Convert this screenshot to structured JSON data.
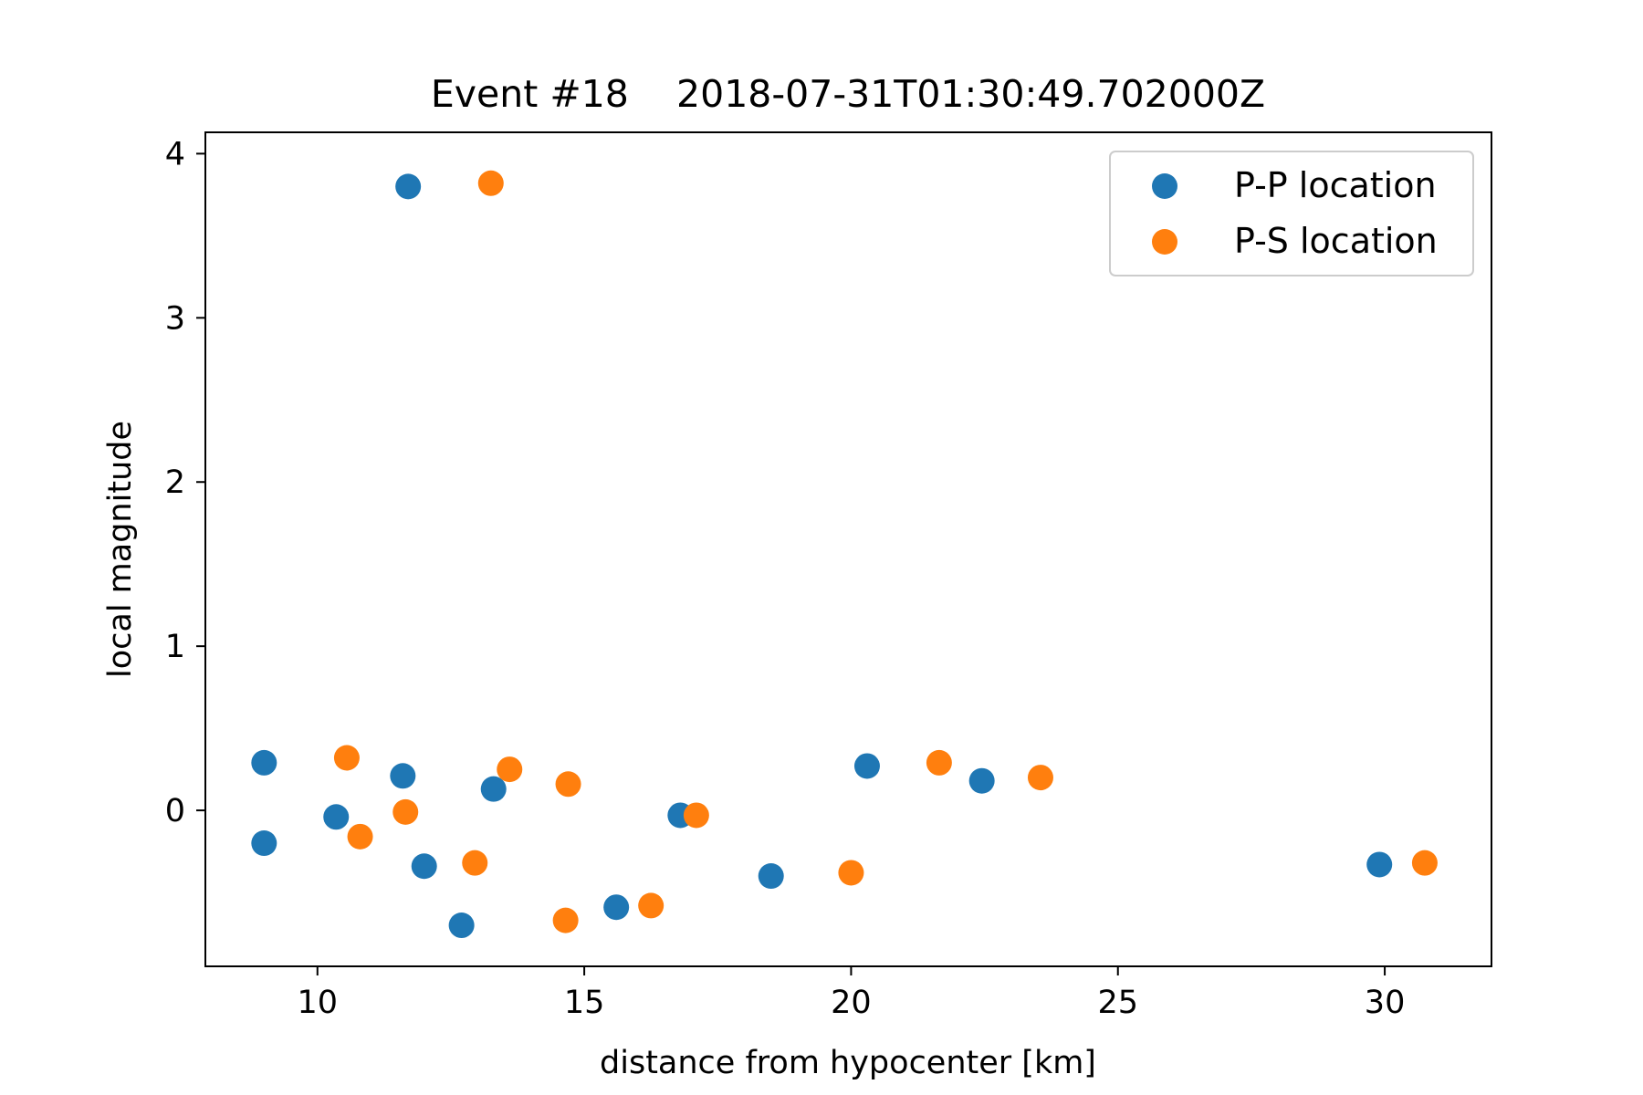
{
  "chart_data": {
    "type": "scatter",
    "title": "Event #18    2018-07-31T01:30:49.702000Z",
    "xlabel": "distance from hypocenter [km]",
    "ylabel": "local magnitude",
    "xlim": [
      7.9,
      32.0
    ],
    "ylim": [
      -0.95,
      4.13
    ],
    "xticks": [
      10,
      15,
      20,
      25,
      30
    ],
    "yticks": [
      0,
      1,
      2,
      3,
      4
    ],
    "grid": false,
    "legend_position": "top-right",
    "series": [
      {
        "name": "P-P location",
        "color": "#1f77b4",
        "points": [
          {
            "x": 11.7,
            "y": 3.8
          },
          {
            "x": 9.0,
            "y": 0.29
          },
          {
            "x": 9.0,
            "y": -0.2
          },
          {
            "x": 10.35,
            "y": -0.04
          },
          {
            "x": 11.6,
            "y": 0.21
          },
          {
            "x": 12.0,
            "y": -0.34
          },
          {
            "x": 12.7,
            "y": -0.7
          },
          {
            "x": 13.3,
            "y": 0.13
          },
          {
            "x": 15.6,
            "y": -0.59
          },
          {
            "x": 16.8,
            "y": -0.03
          },
          {
            "x": 18.5,
            "y": -0.4
          },
          {
            "x": 20.3,
            "y": 0.27
          },
          {
            "x": 22.45,
            "y": 0.18
          },
          {
            "x": 29.9,
            "y": -0.33
          }
        ]
      },
      {
        "name": "P-S location",
        "color": "#ff7f0e",
        "points": [
          {
            "x": 13.25,
            "y": 3.82
          },
          {
            "x": 10.55,
            "y": 0.32
          },
          {
            "x": 10.8,
            "y": -0.16
          },
          {
            "x": 11.65,
            "y": -0.01
          },
          {
            "x": 12.95,
            "y": -0.32
          },
          {
            "x": 13.6,
            "y": 0.25
          },
          {
            "x": 14.65,
            "y": -0.67
          },
          {
            "x": 14.7,
            "y": 0.16
          },
          {
            "x": 16.25,
            "y": -0.58
          },
          {
            "x": 17.1,
            "y": -0.03
          },
          {
            "x": 20.0,
            "y": -0.38
          },
          {
            "x": 21.65,
            "y": 0.29
          },
          {
            "x": 23.55,
            "y": 0.2
          },
          {
            "x": 30.75,
            "y": -0.32
          }
        ]
      }
    ]
  }
}
